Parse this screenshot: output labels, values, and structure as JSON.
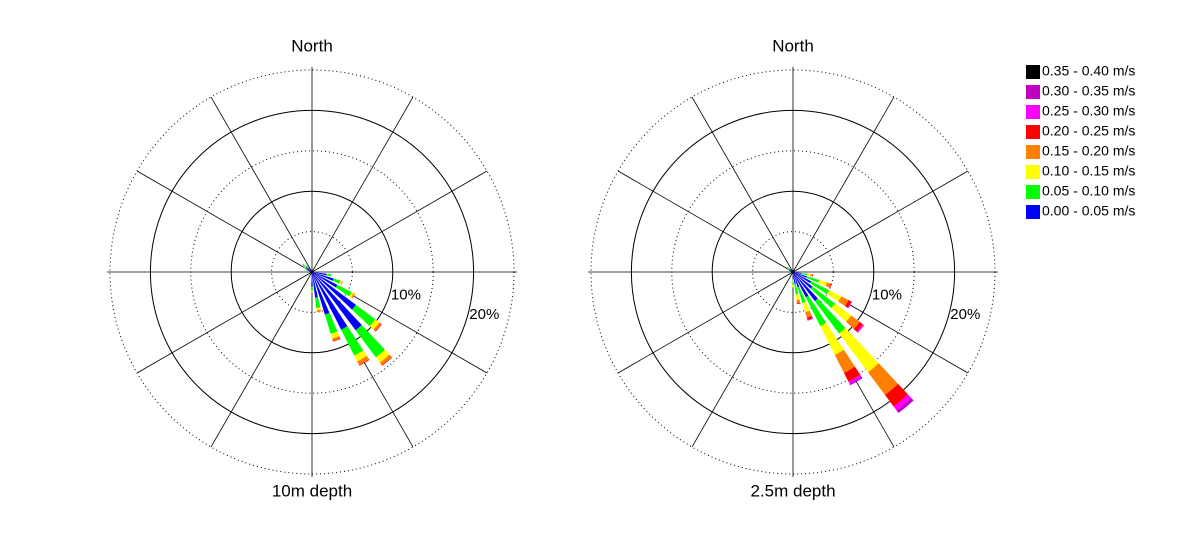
{
  "chart_data": [
    {
      "type": "windrose",
      "title": "North",
      "subtitle": "10m depth",
      "rlim": [
        0,
        25
      ],
      "rticks": [
        {
          "value": 10,
          "label": "10%"
        },
        {
          "value": 20,
          "label": "20%"
        }
      ],
      "rgrid_minor": [
        5,
        15,
        25
      ],
      "directions": [
        100,
        110,
        120,
        130,
        140,
        150,
        160,
        170,
        180,
        290,
        300,
        310,
        320
      ],
      "series": [
        {
          "name": "0.00 - 0.05 m/s",
          "color": "#0000ff",
          "values": [
            1.8,
            2.8,
            3.5,
            6.8,
            9.0,
            8.0,
            5.5,
            3.2,
            1.8,
            0.6,
            0.8,
            1.0,
            0.7
          ]
        },
        {
          "name": "0.05 - 0.10 m/s",
          "color": "#00ff00",
          "values": [
            0.6,
            0.9,
            2.0,
            3.0,
            4.2,
            3.6,
            2.5,
            1.3,
            0.5,
            0.2,
            0.4,
            0.5,
            0.3
          ]
        },
        {
          "name": "0.10 - 0.15 m/s",
          "color": "#ffff00",
          "values": [
            0.1,
            0.2,
            0.3,
            0.6,
            0.8,
            0.8,
            0.6,
            0.3,
            0.2,
            0,
            0,
            0,
            0
          ]
        },
        {
          "name": "0.15 - 0.20 m/s",
          "color": "#ff8000",
          "values": [
            0,
            0.1,
            0.2,
            0.3,
            0.4,
            0.5,
            0.3,
            0.2,
            0,
            0,
            0,
            0,
            0
          ]
        },
        {
          "name": "0.20 - 0.25 m/s",
          "color": "#ff0000",
          "values": [
            0,
            0,
            0,
            0.1,
            0.1,
            0.1,
            0.1,
            0,
            0,
            0,
            0,
            0,
            0
          ]
        },
        {
          "name": "0.25 - 0.30 m/s",
          "color": "#ff00ff",
          "values": [
            0,
            0,
            0,
            0,
            0,
            0,
            0,
            0,
            0,
            0,
            0,
            0,
            0
          ]
        },
        {
          "name": "0.30 - 0.35 m/s",
          "color": "#c000c0",
          "values": [
            0,
            0,
            0,
            0,
            0,
            0,
            0,
            0,
            0,
            0,
            0,
            0,
            0
          ]
        },
        {
          "name": "0.35 - 0.40 m/s",
          "color": "#000000",
          "values": [
            0,
            0,
            0,
            0,
            0,
            0,
            0,
            0,
            0,
            0,
            0,
            0,
            0
          ]
        }
      ]
    },
    {
      "type": "windrose",
      "title": "North",
      "subtitle": "2.5m depth",
      "rlim": [
        0,
        25
      ],
      "rticks": [
        {
          "value": 10,
          "label": "10%"
        },
        {
          "value": 20,
          "label": "20%"
        }
      ],
      "rgrid_minor": [
        5,
        15,
        25
      ],
      "directions": [
        100,
        110,
        120,
        130,
        140,
        150,
        160,
        170,
        180,
        290,
        300,
        310,
        320
      ],
      "series": [
        {
          "values": [
            1.0,
            1.8,
            2.5,
            3.0,
            4.5,
            3.5,
            2.0,
            1.5,
            0.9,
            0.4,
            0.5,
            0.6,
            0.3
          ]
        },
        {
          "values": [
            0.8,
            1.6,
            2.5,
            3.5,
            5.0,
            4.0,
            2.0,
            1.3,
            0.7,
            0.2,
            0.3,
            0.4,
            0.2
          ]
        },
        {
          "values": [
            0.4,
            1.0,
            1.7,
            2.5,
            6.0,
            4.0,
            1.2,
            0.7,
            0.3,
            0,
            0,
            0,
            0
          ]
        },
        {
          "values": [
            0.2,
            0.5,
            1.0,
            1.3,
            3.5,
            2.5,
            0.7,
            0.4,
            0.1,
            0,
            0,
            0,
            0
          ]
        },
        {
          "values": [
            0.1,
            0.1,
            0.4,
            0.5,
            1.8,
            1.2,
            0.3,
            0.1,
            0,
            0,
            0,
            0,
            0
          ]
        },
        {
          "values": [
            0,
            0,
            0.1,
            0.2,
            0.6,
            0.3,
            0.1,
            0,
            0,
            0,
            0,
            0,
            0
          ]
        },
        {
          "values": [
            0,
            0,
            0,
            0,
            0.4,
            0.2,
            0,
            0,
            0,
            0,
            0,
            0,
            0
          ]
        },
        {
          "values": [
            0,
            0,
            0,
            0,
            0,
            0,
            0,
            0,
            0,
            0,
            0,
            0,
            0
          ]
        }
      ]
    }
  ]
}
